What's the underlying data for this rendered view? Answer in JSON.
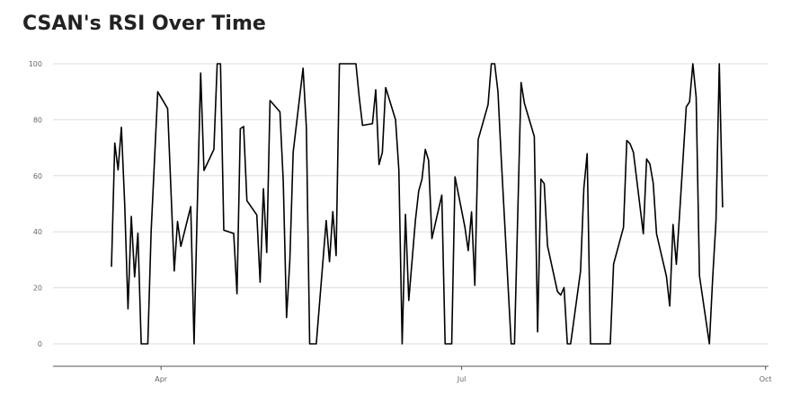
{
  "chart_data": {
    "type": "line",
    "title": "CSAN's RSI Over Time",
    "xlabel": "",
    "ylabel": "",
    "ylim": [
      -8,
      100
    ],
    "xlim": [
      0,
      205
    ],
    "y_ticks": [
      0,
      20,
      40,
      60,
      80,
      100
    ],
    "x_ticks": [
      {
        "label": "Apr",
        "x": 18
      },
      {
        "label": "Jul",
        "x": 109
      },
      {
        "label": "Oct",
        "x": 201
      }
    ],
    "grid": "horizontal",
    "colors": {
      "line": "#000000",
      "grid": "#dddddd",
      "axis": "#555555",
      "text": "#666666",
      "title": "#222222"
    },
    "series": [
      {
        "points": [
          [
            3,
            27.5
          ],
          [
            4,
            71.7
          ],
          [
            5,
            62.1
          ],
          [
            6,
            77.3
          ],
          [
            7,
            50
          ],
          [
            8,
            12.5
          ],
          [
            9,
            45.5
          ],
          [
            10,
            23.9
          ],
          [
            11,
            39.5
          ],
          [
            12,
            0
          ],
          [
            13,
            0
          ],
          [
            14,
            0
          ],
          [
            15,
            40
          ],
          [
            17,
            90
          ],
          [
            20,
            84
          ],
          [
            22,
            26
          ],
          [
            23,
            43.7
          ],
          [
            24,
            34.8
          ],
          [
            27,
            49
          ],
          [
            28,
            0
          ],
          [
            29,
            50
          ],
          [
            30,
            96.7
          ],
          [
            31,
            61.9
          ],
          [
            34,
            69.4
          ],
          [
            35,
            100
          ],
          [
            36,
            100
          ],
          [
            37,
            40.6
          ],
          [
            40,
            39.4
          ],
          [
            41,
            17.9
          ],
          [
            42,
            76.8
          ],
          [
            43,
            77.6
          ],
          [
            44,
            51.1
          ],
          [
            47,
            46
          ],
          [
            48,
            22
          ],
          [
            49,
            55.4
          ],
          [
            50,
            32.6
          ],
          [
            51,
            86.9
          ],
          [
            54,
            82.8
          ],
          [
            55,
            58
          ],
          [
            56,
            9.4
          ],
          [
            57,
            30
          ],
          [
            58,
            68.4
          ],
          [
            61,
            98.4
          ],
          [
            62,
            77.2
          ],
          [
            63,
            0
          ],
          [
            65,
            0
          ],
          [
            68,
            44
          ],
          [
            69,
            29.3
          ],
          [
            70,
            47.2
          ],
          [
            71,
            31.5
          ],
          [
            72,
            100
          ],
          [
            77,
            100
          ],
          [
            78,
            88
          ],
          [
            79,
            78
          ],
          [
            82,
            78.6
          ],
          [
            83,
            90.7
          ],
          [
            84,
            64
          ],
          [
            85,
            68.4
          ],
          [
            86,
            91.5
          ],
          [
            89,
            80
          ],
          [
            90,
            62
          ],
          [
            91,
            0
          ],
          [
            92,
            46.2
          ],
          [
            93,
            15.5
          ],
          [
            95,
            44
          ],
          [
            96,
            54.5
          ],
          [
            97,
            58.8
          ],
          [
            98,
            69.4
          ],
          [
            99,
            65.5
          ],
          [
            100,
            37.6
          ],
          [
            103,
            53.1
          ],
          [
            104,
            0
          ],
          [
            106,
            0
          ],
          [
            107,
            59.6
          ],
          [
            110,
            41.6
          ],
          [
            111,
            33.3
          ],
          [
            112,
            47.1
          ],
          [
            113,
            20.9
          ],
          [
            114,
            72.9
          ],
          [
            117,
            85.4
          ],
          [
            118,
            100
          ],
          [
            119,
            100
          ],
          [
            120,
            90
          ],
          [
            121,
            66
          ],
          [
            124,
            0
          ],
          [
            125,
            0
          ],
          [
            127,
            93.3
          ],
          [
            128,
            85.9
          ],
          [
            131,
            74
          ],
          [
            132,
            4.3
          ],
          [
            133,
            58.8
          ],
          [
            134,
            57.2
          ],
          [
            135,
            35
          ],
          [
            138,
            18.7
          ],
          [
            139,
            17.4
          ],
          [
            140,
            20.1
          ],
          [
            141,
            0
          ],
          [
            142,
            0
          ],
          [
            145,
            26
          ],
          [
            146,
            55.6
          ],
          [
            147,
            67.9
          ],
          [
            148,
            0
          ],
          [
            154,
            0
          ],
          [
            155,
            28.5
          ],
          [
            158,
            41.6
          ],
          [
            159,
            72.6
          ],
          [
            160,
            71.4
          ],
          [
            161,
            68.4
          ],
          [
            164,
            39.3
          ],
          [
            165,
            66
          ],
          [
            166,
            64.2
          ],
          [
            167,
            57.3
          ],
          [
            168,
            39.3
          ],
          [
            171,
            24.1
          ],
          [
            172,
            13.5
          ],
          [
            173,
            42.6
          ],
          [
            174,
            28.4
          ],
          [
            175,
            46.7
          ],
          [
            177,
            84.6
          ],
          [
            178,
            86.4
          ],
          [
            179,
            100
          ],
          [
            180,
            88
          ],
          [
            181,
            24.3
          ],
          [
            184,
            0
          ],
          [
            185,
            23.5
          ],
          [
            186,
            44
          ],
          [
            187,
            100
          ],
          [
            188,
            48.7
          ]
        ]
      }
    ]
  }
}
